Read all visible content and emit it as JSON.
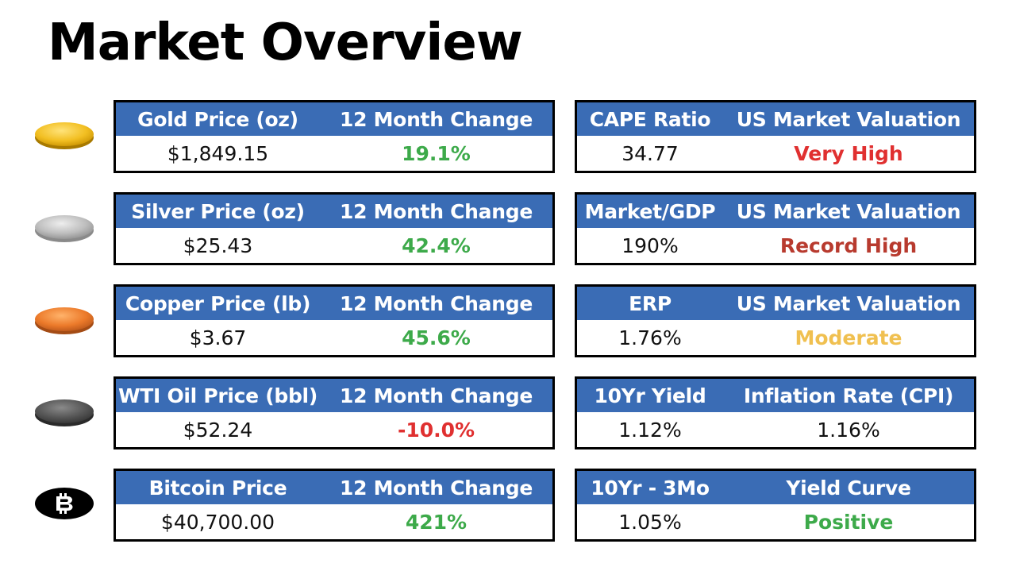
{
  "title": "Market Overview",
  "colors": {
    "header_bg": "#3a6cb5",
    "positive": "#3daa4a",
    "negative": "#e03030",
    "very_high": "#e03030",
    "record_high": "#b83a2e",
    "moderate": "#f0c050"
  },
  "commodities": [
    {
      "icon": "gold-coin-icon",
      "label": "Gold Price (oz)",
      "change_label": "12 Month Change",
      "price": "$1,849.15",
      "change": "19.1%",
      "change_color": "#3daa4a"
    },
    {
      "icon": "silver-coin-icon",
      "label": "Silver Price (oz)",
      "change_label": "12 Month Change",
      "price": "$25.43",
      "change": "42.4%",
      "change_color": "#3daa4a"
    },
    {
      "icon": "copper-coin-icon",
      "label": "Copper Price (lb)",
      "change_label": "12 Month Change",
      "price": "$3.67",
      "change": "45.6%",
      "change_color": "#3daa4a"
    },
    {
      "icon": "oil-coin-icon",
      "label": "WTI Oil Price (bbl)",
      "change_label": "12 Month Change",
      "price": "$52.24",
      "change": "-10.0%",
      "change_color": "#e03030"
    },
    {
      "icon": "bitcoin-icon",
      "label": "Bitcoin Price",
      "change_label": "12 Month Change",
      "price": "$40,700.00",
      "change": "421%",
      "change_color": "#3daa4a"
    }
  ],
  "indicators": [
    {
      "label": "CAPE Ratio",
      "label2": "US Market Valuation",
      "value": "34.77",
      "value2": "Very High",
      "value2_color": "#e03030",
      "value2_bold": true
    },
    {
      "label": "Market/GDP",
      "label2": "US Market Valuation",
      "value": "190%",
      "value2": "Record High",
      "value2_color": "#b83a2e",
      "value2_bold": true
    },
    {
      "label": "ERP",
      "label2": "US Market Valuation",
      "value": "1.76%",
      "value2": "Moderate",
      "value2_color": "#f0c050",
      "value2_bold": true
    },
    {
      "label": "10Yr Yield",
      "label2": "Inflation Rate (CPI)",
      "value": "1.12%",
      "value2": "1.16%",
      "value2_color": "#111111",
      "value2_bold": false
    },
    {
      "label": "10Yr - 3Mo",
      "label2": "Yield Curve",
      "value": "1.05%",
      "value2": "Positive",
      "value2_color": "#3daa4a",
      "value2_bold": true
    }
  ]
}
